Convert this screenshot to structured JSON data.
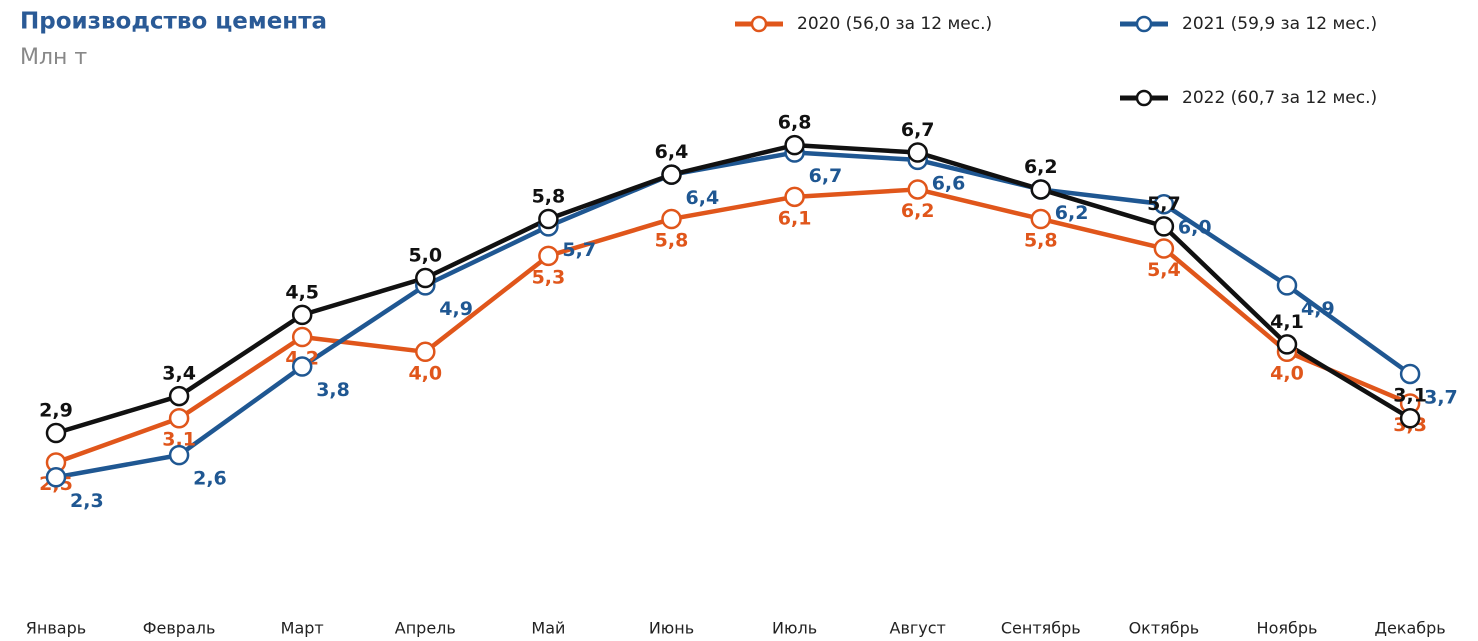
{
  "chart_data": {
    "type": "line",
    "title": "Производство цемента",
    "subtitle": "Млн т",
    "categories": [
      "Январь",
      "Февраль",
      "Март",
      "Апрель",
      "Май",
      "Июнь",
      "Июль",
      "Август",
      "Сентябрь",
      "Октябрь",
      "Ноябрь",
      "Декабрь"
    ],
    "series": [
      {
        "name": "2020 (56,0 за 12 мес.)",
        "color": "#e0561b",
        "values": [
          2.5,
          3.1,
          4.2,
          4.0,
          5.3,
          5.8,
          6.1,
          6.2,
          5.8,
          5.4,
          4.0,
          3.3
        ],
        "value_labels": [
          "2,5",
          "3,1",
          "4.2",
          "4,0",
          "5,3",
          "5,8",
          "6,1",
          "6,2",
          "5,8",
          "5,4",
          "4,0",
          "3,3"
        ]
      },
      {
        "name": "2021 (59,9 за 12 мес.)",
        "color": "#1f5792",
        "values": [
          2.3,
          2.6,
          3.8,
          4.9,
          5.7,
          6.4,
          6.7,
          6.6,
          6.2,
          6.0,
          4.9,
          3.7
        ],
        "value_labels": [
          "2,3",
          "2,6",
          "3,8",
          "4,9",
          "5,7",
          "6,4",
          "6,7",
          "6,6",
          "6,2",
          "6,0",
          "4,9",
          "3,7"
        ]
      },
      {
        "name": "2022 (60,7 за 12 мес.)",
        "color": "#111111",
        "values": [
          2.9,
          3.4,
          4.5,
          5.0,
          5.8,
          6.4,
          6.8,
          6.7,
          6.2,
          5.7,
          4.1,
          3.1
        ],
        "value_labels": [
          "2,9",
          "3,4",
          "4,5",
          "5,0",
          "5,8",
          "6,4",
          "6,8",
          "6,7",
          "6,2",
          "5,7",
          "4,1",
          "3,1"
        ]
      }
    ]
  }
}
